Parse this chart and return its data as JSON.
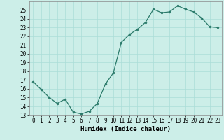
{
  "x": [
    0,
    1,
    2,
    3,
    4,
    5,
    6,
    7,
    8,
    9,
    10,
    11,
    12,
    13,
    14,
    15,
    16,
    17,
    18,
    19,
    20,
    21,
    22,
    23
  ],
  "y": [
    16.8,
    15.9,
    15.0,
    14.3,
    14.8,
    13.3,
    13.1,
    13.4,
    14.3,
    16.5,
    17.8,
    21.3,
    22.2,
    22.8,
    23.6,
    25.1,
    24.7,
    24.8,
    25.5,
    25.1,
    24.8,
    24.1,
    23.1,
    23.0
  ],
  "line_color": "#2a7a6a",
  "marker": "o",
  "markersize": 2.0,
  "linewidth": 0.9,
  "bg_color": "#cceee8",
  "grid_color": "#aaddd8",
  "xlabel": "Humidex (Indice chaleur)",
  "xlim": [
    -0.5,
    23.5
  ],
  "ylim": [
    13,
    26
  ],
  "yticks": [
    13,
    14,
    15,
    16,
    17,
    18,
    19,
    20,
    21,
    22,
    23,
    24,
    25
  ],
  "xticks": [
    0,
    1,
    2,
    3,
    4,
    5,
    6,
    7,
    8,
    9,
    10,
    11,
    12,
    13,
    14,
    15,
    16,
    17,
    18,
    19,
    20,
    21,
    22,
    23
  ],
  "tick_fontsize": 5.5,
  "label_fontsize": 6.5,
  "spine_color": "#888888"
}
